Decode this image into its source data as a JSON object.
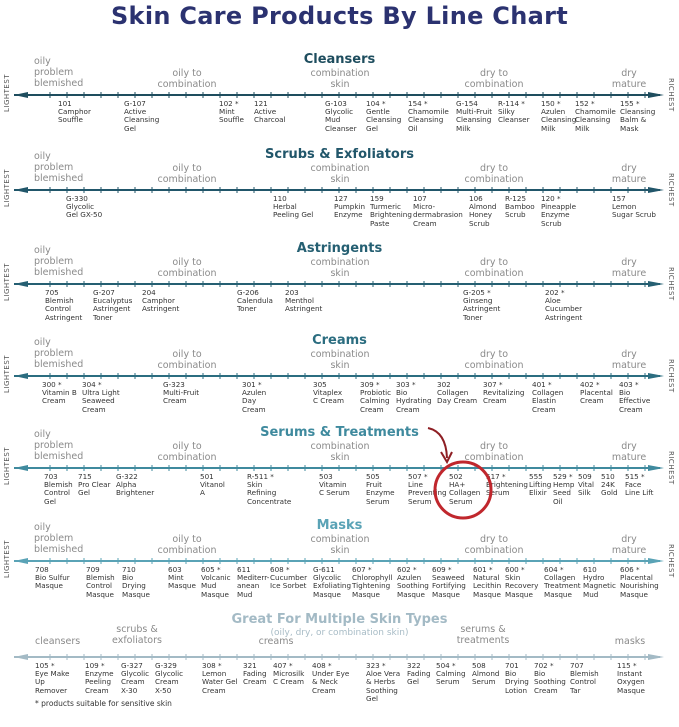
{
  "title": "Skin Care Products By Line Chart",
  "axis_labels": {
    "left": "LIGHTEST",
    "right": "RICHEST"
  },
  "skin_types": {
    "oily": "oily\nproblem\nblemished",
    "oily_combo": "oily to\ncombination",
    "combo": "combination\nskin",
    "dry_combo": "dry to\ncombination",
    "dry": "dry\nmature"
  },
  "colors": {
    "title": "#2b3270",
    "highlight": "#c0272d"
  },
  "sections": [
    {
      "title": "Cleansers",
      "color": "#1e4d5e",
      "products": [
        {
          "code": "101",
          "name": "Camphor\nSouffle"
        },
        {
          "code": "G-107",
          "name": "Active\nCleansing\nGel"
        },
        {
          "code": "102 *",
          "name": "Mint\nSouffle"
        },
        {
          "code": "121",
          "name": "Active\nCharcoal"
        },
        {
          "code": "G-103",
          "name": "Glycolic\nMud\nCleanser"
        },
        {
          "code": "104 *",
          "name": "Gentle\nCleansing\nGel"
        },
        {
          "code": "154 *",
          "name": "Chamomile\nCleansing\nOil"
        },
        {
          "code": "G-154",
          "name": "Multi-Fruit\nCleansing\nMilk"
        },
        {
          "code": "R-114 *",
          "name": "Silky\nCleanser"
        },
        {
          "code": "150 *",
          "name": "Azulen\nCleansing\nMilk"
        },
        {
          "code": "152 *",
          "name": "Chamomile\nCleansing\nMilk"
        },
        {
          "code": "155 *",
          "name": "Cleansing\nBalm &\nMask"
        }
      ]
    },
    {
      "title": "Scrubs & Exfoliators",
      "color": "#21566a",
      "products": [
        {
          "code": "G-330",
          "name": "Glycolic\nGel GX-50"
        },
        {
          "code": "110",
          "name": "Herbal\nPeeling Gel"
        },
        {
          "code": "127",
          "name": "Pumpkin\nEnzyme"
        },
        {
          "code": "159",
          "name": "Turmeric\nBrightening\nPaste"
        },
        {
          "code": "107",
          "name": "Micro-\ndermabrasion\nCream"
        },
        {
          "code": "106",
          "name": "Almond\nHoney\nScrub"
        },
        {
          "code": "R-125",
          "name": "Bamboo\nScrub"
        },
        {
          "code": "120 *",
          "name": "Pineapple\nEnzyme\nScrub"
        },
        {
          "code": "157",
          "name": "Lemon\nSugar Scrub"
        }
      ]
    },
    {
      "title": "Astringents",
      "color": "#255f72",
      "products": [
        {
          "code": "705",
          "name": "Blemish\nControl\nAstringent"
        },
        {
          "code": "G-207",
          "name": "Eucalyptus\nAstringent\nToner"
        },
        {
          "code": "204",
          "name": "Camphor\nAstringent"
        },
        {
          "code": "G-206",
          "name": "Calendula\nToner"
        },
        {
          "code": "203",
          "name": "Menthol\nAstringent"
        },
        {
          "code": "G-205 *",
          "name": "Ginseng\nAstringent\nToner"
        },
        {
          "code": "202 *",
          "name": "Aloe\nCucumber\nAstringent"
        }
      ]
    },
    {
      "title": "Creams",
      "color": "#2b6d80",
      "products": [
        {
          "code": "300 *",
          "name": "Vitamin B\nCream"
        },
        {
          "code": "304 *",
          "name": "Ultra Light\nSeaweed\nCream"
        },
        {
          "code": "G-323",
          "name": "Multi-Fruit\nCream"
        },
        {
          "code": "301 *",
          "name": "Azulen\nDay\nCream"
        },
        {
          "code": "305",
          "name": "Vitaplex\nC Cream"
        },
        {
          "code": "309 *",
          "name": "Probiotic\nCalming\nCream"
        },
        {
          "code": "303 *",
          "name": "Bio\nHydrating\nCream"
        },
        {
          "code": "302",
          "name": "Collagen\nDay Cream"
        },
        {
          "code": "307 *",
          "name": "Revitalizing\nCream"
        },
        {
          "code": "401 *",
          "name": "Collagen\nElastin\nCream"
        },
        {
          "code": "402 *",
          "name": "Placental\nCream"
        },
        {
          "code": "403 *",
          "name": "Bio\nEffective\nCream"
        }
      ]
    },
    {
      "title": "Serums & Treatments",
      "color": "#3f8a9e",
      "products": [
        {
          "code": "703",
          "name": "Blemish\nControl\nGel"
        },
        {
          "code": "715",
          "name": "Pro Clear\nGel"
        },
        {
          "code": "G-322",
          "name": "Alpha\nBrightener"
        },
        {
          "code": "501",
          "name": "Vitanol\nA"
        },
        {
          "code": "R-511 *",
          "name": "Skin\nRefining\nConcentrate"
        },
        {
          "code": "503",
          "name": "Vitamin\nC Serum"
        },
        {
          "code": "505",
          "name": "Fruit\nEnzyme\nSerum"
        },
        {
          "code": "507 *",
          "name": "Line\nPreventing\nSerum"
        },
        {
          "code": "502",
          "name": "HA+\nCollagen\nSerum"
        },
        {
          "code": "517 *",
          "name": "Brightening\nSerum"
        },
        {
          "code": "555",
          "name": "Lifting\nElixir"
        },
        {
          "code": "529 *",
          "name": "Hemp\nSeed\nOil"
        },
        {
          "code": "509",
          "name": "Vital\nSilk"
        },
        {
          "code": "510",
          "name": "24K\nGold"
        },
        {
          "code": "515 *",
          "name": "Face\nLine Lift"
        }
      ]
    },
    {
      "title": "Masks",
      "color": "#5aa3b6",
      "products": [
        {
          "code": "708",
          "name": "Bio Sulfur\nMasque"
        },
        {
          "code": "709",
          "name": "Blemish\nControl\nMasque"
        },
        {
          "code": "710",
          "name": "Bio\nDrying\nMasque"
        },
        {
          "code": "603",
          "name": "Mint\nMasque"
        },
        {
          "code": "605 *",
          "name": "Volcanic\nMud\nMasque"
        },
        {
          "code": "611",
          "name": "Mediterr-\nanean\nMud"
        },
        {
          "code": "608 *",
          "name": "Cucumber\nIce Sorbet"
        },
        {
          "code": "G-611",
          "name": "Glycolic\nExfoliating\nMasque"
        },
        {
          "code": "607 *",
          "name": "Chlorophyll\nTightening\nMasque"
        },
        {
          "code": "602 *",
          "name": "Azulen\nSoothing\nMasque"
        },
        {
          "code": "609 *",
          "name": "Seaweed\nFortifying\nMasque"
        },
        {
          "code": "601 *",
          "name": "Natural\nLecithin\nMasque"
        },
        {
          "code": "600 *",
          "name": "Skin\nRecovery\nMasque"
        },
        {
          "code": "604 *",
          "name": "Collagen\nTreatment\nMasque"
        },
        {
          "code": "610",
          "name": "Hydro\nMagnetic\nMud"
        },
        {
          "code": "606 *",
          "name": "Placental\nNourishing\nMasque"
        }
      ]
    }
  ],
  "multi": {
    "title": "Great For Multiple Skin Types",
    "subtitle": "(oily, dry, or combination skin)",
    "color": "#a3bac5",
    "categories": [
      "cleansers",
      "scrubs &\nexfoliators",
      "creams",
      "serums &\ntreatments",
      "masks"
    ],
    "products": [
      {
        "code": "105 *",
        "name": "Eye Make\nUp\nRemover"
      },
      {
        "code": "109 *",
        "name": "Enzyme\nPeeling\nCream"
      },
      {
        "code": "G-327",
        "name": "Glycolic\nCream\nX-30"
      },
      {
        "code": "G-329",
        "name": "Glycolic\nCream\nX-50"
      },
      {
        "code": "308 *",
        "name": "Lemon\nWater Gel\nCream"
      },
      {
        "code": "321",
        "name": "Fading\nCream"
      },
      {
        "code": "407 *",
        "name": "Microsilk\nC Cream"
      },
      {
        "code": "408 *",
        "name": "Under Eye\n& Neck\nCream"
      },
      {
        "code": "323 *",
        "name": "Aloe Vera\n& Herbs\nSoothing\nGel"
      },
      {
        "code": "322",
        "name": "Fading\nGel"
      },
      {
        "code": "504 *",
        "name": "Calming\nSerum"
      },
      {
        "code": "508",
        "name": "Almond\nSerum"
      },
      {
        "code": "701",
        "name": "Bio\nDrying\nLotion"
      },
      {
        "code": "702 *",
        "name": "Bio\nSoothing\nCream"
      },
      {
        "code": "707",
        "name": "Blemish\nControl\nTar"
      },
      {
        "code": "115 *",
        "name": "Instant\nOxygen\nMasque"
      }
    ]
  },
  "footnote": "* products suitable for sensitive skin"
}
